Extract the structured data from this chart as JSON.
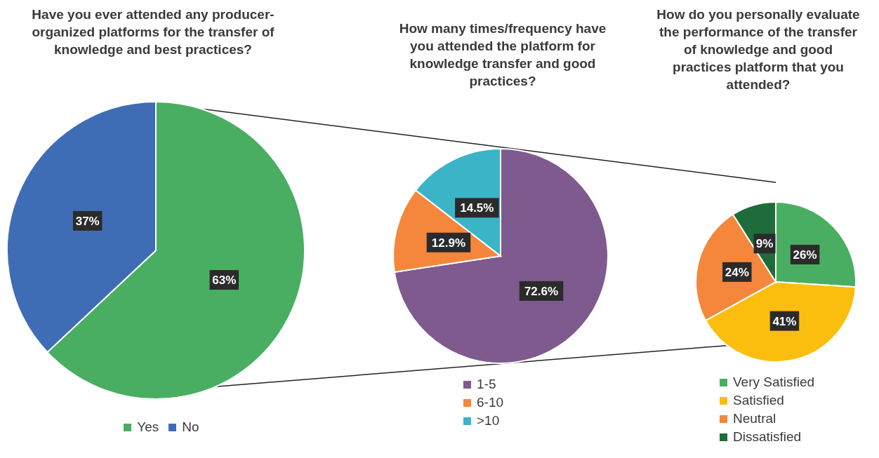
{
  "chart_data": [
    {
      "type": "pie",
      "title": "Have you ever attended any producer-organized platforms for the transfer of knowledge and best practices?",
      "categories": [
        "Yes",
        "No"
      ],
      "values": [
        63,
        37
      ],
      "colors": [
        "#4aae62",
        "#3f6db5"
      ],
      "value_labels": [
        "63%",
        "37%"
      ],
      "legend": "bottom"
    },
    {
      "type": "pie",
      "title": "How many times/frequency have you attended the platform for knowledge transfer and good practices?",
      "categories": [
        "1-5",
        "6-10",
        ">10"
      ],
      "values": [
        72.6,
        12.9,
        14.5
      ],
      "colors": [
        "#7e5a8e",
        "#f4873b",
        "#3bb4c8"
      ],
      "value_labels": [
        "72.6%",
        "12.9%",
        "14.5%"
      ],
      "legend": "bottom"
    },
    {
      "type": "pie",
      "title": "How do you personally evaluate the performance of the transfer of knowledge and good practices platform that you attended?",
      "categories": [
        "Very Satisfied",
        "Satisfied",
        "Neutral",
        "Dissatisfied"
      ],
      "values": [
        26,
        41,
        24,
        9
      ],
      "colors": [
        "#4aae62",
        "#fbbd0e",
        "#f4873b",
        "#1e6b3c"
      ],
      "value_labels": [
        "26%",
        "41%",
        "24%",
        "9%"
      ],
      "legend": "bottom"
    }
  ]
}
